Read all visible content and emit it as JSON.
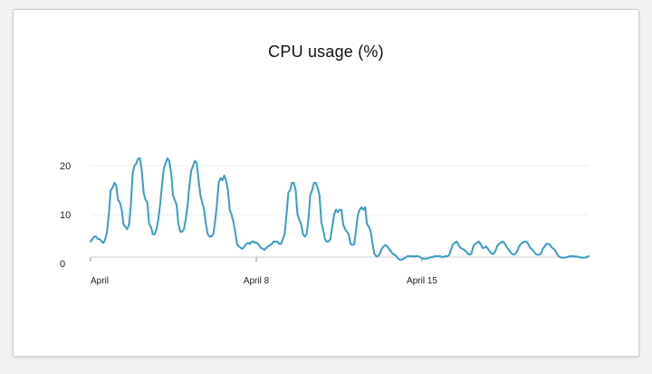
{
  "chart_data": {
    "type": "line",
    "title": "CPU usage (%)",
    "xlabel": "",
    "ylabel": "",
    "ylim": [
      0,
      20
    ],
    "y_ticks": [
      0,
      10,
      20
    ],
    "x_ticks": [
      "April",
      "April 8",
      "April 15"
    ],
    "grid": "horizontal",
    "line_color": "#3a9cc4",
    "grid_color": "#e9edf2",
    "series": [
      {
        "values": [
          4.5,
          5,
          5.5,
          5.5,
          5,
          5,
          4.5,
          4.2,
          5,
          6.5,
          10,
          15,
          15.5,
          16.5,
          16,
          13,
          12.5,
          11,
          8,
          7.5,
          7,
          8,
          12,
          18.5,
          20,
          20.5,
          21.5,
          21.5,
          19,
          14.5,
          13,
          12.5,
          8,
          7.5,
          6,
          6,
          7,
          9,
          12,
          16,
          19.5,
          20.5,
          21.5,
          21,
          18.5,
          14,
          13,
          12,
          8,
          6.5,
          6.5,
          7,
          9,
          12,
          16,
          19,
          20,
          21,
          20.5,
          17,
          14,
          12.5,
          11,
          8,
          6,
          5.5,
          5.5,
          6,
          8.5,
          12,
          16.5,
          17.5,
          17,
          18,
          17,
          15,
          11,
          10,
          8.5,
          6.5,
          4,
          3.5,
          3.2,
          3,
          3.5,
          4,
          4.2,
          4,
          4.5,
          4.5,
          4.2,
          4.2,
          3.8,
          3.2,
          3,
          2.8,
          3.2,
          3.5,
          3.8,
          4,
          4.5,
          4.5,
          4.5,
          4,
          4,
          5,
          6,
          10,
          14.5,
          15,
          16.5,
          16.5,
          15,
          10,
          9,
          8,
          6,
          5.5,
          6,
          9,
          14,
          15,
          16.5,
          16.5,
          15.5,
          14,
          8.5,
          7,
          5,
          4.5,
          4.5,
          5,
          7.5,
          10,
          11,
          10.5,
          11,
          11,
          8,
          7,
          6.5,
          6,
          4,
          3.8,
          4,
          7,
          10,
          11,
          11.5,
          11,
          11.5,
          8,
          7.5,
          6.5,
          4,
          2,
          1.5,
          1.5,
          2,
          3,
          3.5,
          3.8,
          3.5,
          3,
          2.5,
          2,
          1.8,
          1.5,
          1,
          0.8,
          0.8,
          1,
          1.2,
          1.5,
          1.5,
          1.5,
          1.5,
          1.4,
          1.5,
          1.5,
          1.3,
          1,
          1,
          1,
          1,
          1.2,
          1.3,
          1.3,
          1.5,
          1.5,
          1.5,
          1.5,
          1.3,
          1.4,
          1.5,
          1.5,
          1.8,
          3,
          4,
          4.3,
          4.5,
          3.8,
          3.2,
          3,
          2.8,
          2.5,
          2,
          1.8,
          2,
          3.5,
          4,
          4.2,
          4.5,
          4,
          3.2,
          3.2,
          3.5,
          3,
          2.5,
          2,
          2,
          2.5,
          3.5,
          4,
          4.2,
          4.5,
          4.2,
          3.5,
          3,
          2.5,
          2,
          1.8,
          2,
          2.5,
          3.5,
          4,
          4.3,
          4.5,
          4.5,
          4,
          3.2,
          3,
          2.5,
          2,
          1.8,
          1.8,
          2,
          3,
          3.5,
          4,
          4,
          3.8,
          3.2,
          3,
          2.5,
          1.8,
          1.4,
          1.2,
          1.2,
          1.2,
          1.3,
          1.4,
          1.5,
          1.5,
          1.5,
          1.4,
          1.4,
          1.3,
          1.2,
          1.2,
          1.2,
          1.3,
          1.5
        ]
      }
    ]
  }
}
